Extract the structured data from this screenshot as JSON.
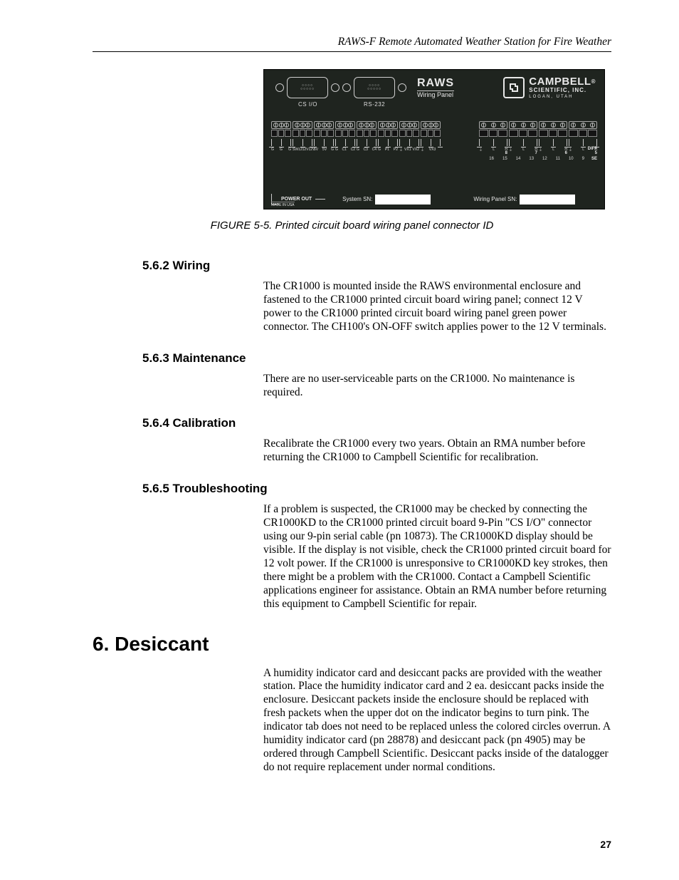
{
  "header": {
    "running_title": "RAWS-F Remote Automated Weather Station for Fire Weather"
  },
  "figure": {
    "ports": {
      "csio": "CS I/O",
      "rs232": "RS-232"
    },
    "raws": {
      "line1": "RAWS",
      "line2": "Wiring Panel"
    },
    "campbell": {
      "line1": "CAMPBELL",
      "reg": "®",
      "line2": "SCIENTIFIC, INC.",
      "line3": "LOGAN, UTAH"
    },
    "left_block_labels": [
      [
        "G",
        "G",
        "G"
      ],
      [
        "SW12",
        "12V",
        "12V"
      ],
      [
        "5V",
        "5V",
        "G"
      ],
      [
        "G",
        "C1",
        "C2"
      ],
      [
        "G",
        "C3",
        "C4"
      ],
      [
        "G",
        "P1",
        "P2"
      ],
      [
        "⏚",
        "VX1",
        "VX2"
      ],
      [
        "⏚",
        "VX3",
        ""
      ]
    ],
    "right_groups_H": [
      "8",
      "7",
      "6",
      "5"
    ],
    "right_channel_nums": [
      "16",
      "15",
      "14",
      "13",
      "12",
      "11",
      "10",
      "9"
    ],
    "right_labels": {
      "diff": "DIFF",
      "se": "SE"
    },
    "bottom": {
      "power_out": "POWER OUT",
      "system_sn": "System SN:",
      "wiring_sn": "Wiring Panel SN:",
      "made_in": "MADE IN USA"
    },
    "caption": "FIGURE 5-5.  Printed circuit board wiring panel connector ID"
  },
  "sections": {
    "s562": {
      "num_title": "5.6.2  Wiring",
      "body": "The CR1000 is mounted inside the RAWS environmental enclosure and fastened to the CR1000 printed circuit board wiring panel; connect 12 V power to the CR1000 printed circuit board wiring panel green power connector.  The CH100's ON-OFF switch applies power to the 12 V terminals."
    },
    "s563": {
      "num_title": "5.6.3  Maintenance",
      "body": "There are no user-serviceable parts on the CR1000.  No maintenance is required."
    },
    "s564": {
      "num_title": "5.6.4  Calibration",
      "body": "Recalibrate the CR1000 every two years.  Obtain an RMA number before returning the CR1000 to Campbell Scientific for recalibration."
    },
    "s565": {
      "num_title": "5.6.5  Troubleshooting",
      "body": "If a problem is suspected, the CR1000 may be checked by connecting the CR1000KD to the CR1000 printed circuit board 9-Pin \"CS I/O\" connector using our 9-pin serial cable (pn 10873).  The CR1000KD display should be visible.  If the display is not visible, check the CR1000 printed circuit board for 12 volt power.  If the CR1000 is unresponsive to CR1000KD key strokes, then there might be a problem with the CR1000.  Contact a Campbell Scientific applications engineer for assistance.  Obtain an RMA number before returning this equipment to Campbell Scientific for repair."
    },
    "s6": {
      "num_title": "6.    Desiccant",
      "body": "A humidity indicator card and desiccant packs are provided with the weather station.  Place the humidity indicator card and 2 ea. desiccant packs inside the enclosure.  Desiccant packets inside the enclosure should be replaced with fresh packets when the upper dot on the indicator begins to turn pink.  The indicator tab does not need to be replaced unless the colored circles overrun.  A humidity indicator card (pn 28878) and desiccant pack (pn 4905) may be ordered through Campbell Scientific.  Desiccant packs inside of the datalogger do not require replacement under normal conditions."
    }
  },
  "page_number": "27"
}
